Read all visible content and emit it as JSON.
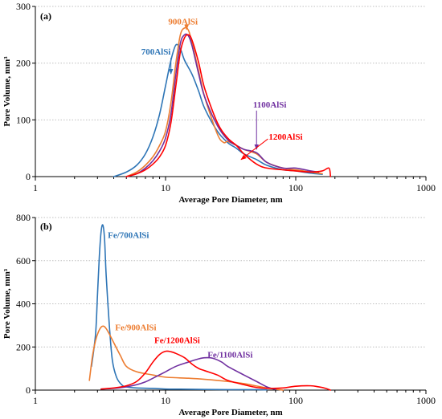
{
  "chart_data": [
    {
      "type": "line",
      "panel_label": "(a)",
      "xlabel": "Average Pore Diameter, nm",
      "ylabel": "Pore Volume, mm³",
      "xscale": "log",
      "xlim": [
        1,
        1000
      ],
      "ylim": [
        0,
        300
      ],
      "x_ticks": [
        "1",
        "10",
        "100",
        "1000"
      ],
      "y_ticks": [
        "0",
        "100",
        "200",
        "300"
      ],
      "grid": "horizontal dotted",
      "series": [
        {
          "name": "700AlSi",
          "color": "#2e75b6",
          "x": [
            4.0,
            5,
            6,
            7,
            8,
            9,
            10,
            11,
            12,
            13,
            14,
            16,
            18,
            20,
            25,
            30,
            35,
            40,
            50,
            60,
            80,
            100,
            130,
            160
          ],
          "y": [
            0,
            8,
            20,
            40,
            70,
            110,
            160,
            205,
            232,
            225,
            205,
            180,
            150,
            120,
            80,
            60,
            50,
            40,
            30,
            20,
            12,
            10,
            6,
            4
          ]
        },
        {
          "name": "900AlSi",
          "color": "#ed7d31",
          "x": [
            5,
            6,
            7,
            8,
            9,
            10,
            11,
            12,
            13,
            14,
            15,
            16,
            18,
            20,
            25,
            28,
            30,
            35,
            40,
            50,
            60,
            80,
            100,
            130,
            160
          ],
          "y": [
            0,
            8,
            20,
            35,
            55,
            80,
            130,
            200,
            250,
            262,
            258,
            235,
            185,
            140,
            75,
            60,
            62,
            55,
            48,
            40,
            25,
            15,
            12,
            8,
            5
          ]
        },
        {
          "name": "1100AlSi",
          "color": "#7030a0",
          "x": [
            5,
            6,
            7,
            8,
            9,
            10,
            11,
            12,
            13,
            14,
            15,
            16,
            18,
            20,
            25,
            30,
            35,
            40,
            50,
            60,
            80,
            100,
            130,
            150
          ],
          "y": [
            0,
            5,
            15,
            28,
            45,
            68,
            110,
            180,
            235,
            250,
            248,
            230,
            180,
            140,
            90,
            65,
            55,
            48,
            42,
            25,
            15,
            15,
            10,
            8
          ]
        },
        {
          "name": "1200AlSi",
          "color": "#ff0000",
          "x": [
            5,
            6,
            7,
            8,
            9,
            10,
            11,
            12,
            13,
            14,
            15,
            16,
            18,
            20,
            25,
            30,
            35,
            40,
            50,
            60,
            80,
            100,
            130,
            160,
            180,
            185
          ],
          "y": [
            0,
            5,
            12,
            22,
            35,
            55,
            95,
            160,
            220,
            245,
            250,
            240,
            200,
            155,
            95,
            68,
            55,
            40,
            22,
            15,
            12,
            10,
            8,
            10,
            15,
            0
          ]
        }
      ],
      "annotations": [
        {
          "text": "900AlSi",
          "color": "#ed7d31",
          "x": 10.5,
          "y": 268,
          "arrow_to_x": 14.5,
          "arrow_to_y": 259
        },
        {
          "text": "700AlSi",
          "color": "#2e75b6",
          "x": 6.5,
          "y": 215,
          "arrow_to_x": 11,
          "arrow_to_y": 181
        },
        {
          "text": "1100AlSi",
          "color": "#7030a0",
          "x": 47,
          "y": 122,
          "arrow_to_x": 50,
          "arrow_to_y": 48
        },
        {
          "text": "1200AlSi",
          "color": "#ff0000",
          "x": 62,
          "y": 65,
          "arrow_to_x": 38,
          "arrow_to_y": 30
        }
      ]
    },
    {
      "type": "line",
      "panel_label": "(b)",
      "xlabel": "Average Pore Diameter, nm",
      "ylabel": "Pore Volume, mm³",
      "xscale": "log",
      "xlim": [
        1,
        1000
      ],
      "ylim": [
        0,
        800
      ],
      "x_ticks": [
        "1",
        "10",
        "100",
        "1000"
      ],
      "y_ticks": [
        "0",
        "200",
        "400",
        "600",
        "800"
      ],
      "grid": "horizontal dotted",
      "series": [
        {
          "name": "Fe/700AlSi",
          "color": "#2e75b6",
          "x": [
            2.7,
            2.9,
            3.0,
            3.1,
            3.2,
            3.3,
            3.4,
            3.5,
            3.7,
            3.9,
            4.2,
            4.6,
            5,
            6,
            8,
            10,
            15,
            20,
            30,
            50,
            60
          ],
          "y": [
            110,
            260,
            440,
            620,
            735,
            765,
            700,
            530,
            300,
            140,
            60,
            25,
            15,
            10,
            8,
            5,
            4,
            3,
            2,
            2,
            1
          ]
        },
        {
          "name": "Fe/900AlSi",
          "color": "#ed7d31",
          "x": [
            2.6,
            2.75,
            2.9,
            3.05,
            3.2,
            3.35,
            3.5,
            3.7,
            4.0,
            4.5,
            5,
            6,
            8,
            10,
            15,
            20,
            30,
            40,
            60,
            80
          ],
          "y": [
            45,
            160,
            230,
            270,
            292,
            296,
            285,
            260,
            220,
            160,
            110,
            85,
            70,
            60,
            55,
            50,
            40,
            30,
            10,
            0
          ]
        },
        {
          "name": "Fe/1100AlSi",
          "color": "#7030a0",
          "x": [
            3.2,
            4,
            5,
            6,
            7,
            8,
            10,
            12,
            15,
            18,
            20,
            23,
            27,
            30,
            40,
            50,
            60,
            70
          ],
          "y": [
            5,
            8,
            15,
            25,
            38,
            55,
            85,
            110,
            130,
            145,
            150,
            148,
            130,
            110,
            70,
            40,
            15,
            3
          ]
        },
        {
          "name": "Fe/1200AlSi",
          "color": "#ff0000",
          "x": [
            3.2,
            4,
            5,
            6,
            7,
            8,
            9,
            10,
            11,
            12,
            14,
            16,
            18,
            20,
            25,
            30,
            40,
            50,
            60,
            80,
            100,
            130,
            150,
            170,
            185
          ],
          "y": [
            5,
            10,
            20,
            40,
            80,
            130,
            165,
            180,
            178,
            170,
            150,
            120,
            100,
            90,
            70,
            45,
            25,
            12,
            8,
            10,
            18,
            20,
            15,
            8,
            0
          ]
        }
      ],
      "annotations": [
        {
          "text": "Fe/700AlSi",
          "color": "#2e75b6",
          "x": 3.6,
          "y": 705
        },
        {
          "text": "Fe/900AlSi",
          "color": "#ed7d31",
          "x": 4.1,
          "y": 278
        },
        {
          "text": "Fe/1200AlSi",
          "color": "#ff0000",
          "x": 8.2,
          "y": 218
        },
        {
          "text": "Fe/1100AlSi",
          "color": "#7030a0",
          "x": 21,
          "y": 150
        }
      ]
    }
  ]
}
